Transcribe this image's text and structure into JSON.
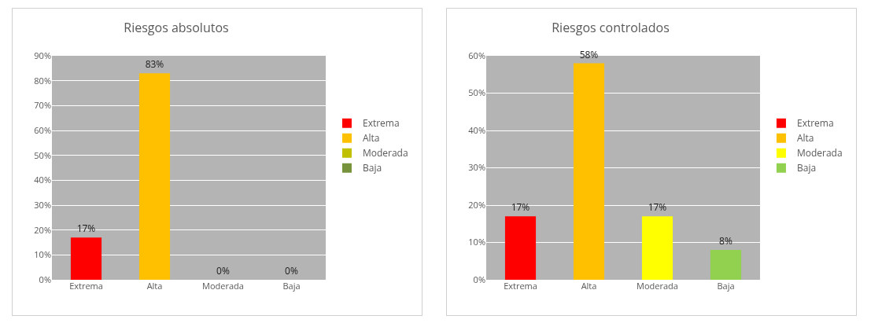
{
  "chart_data": [
    {
      "type": "bar",
      "title": "Riesgos absolutos",
      "categories": [
        "Extrema",
        "Alta",
        "Moderada",
        "Baja"
      ],
      "series": [
        {
          "name": "Extrema",
          "color": "#ff0000",
          "values": [
            17,
            null,
            null,
            null
          ],
          "value_labels": [
            "17%",
            null,
            null,
            null
          ]
        },
        {
          "name": "Alta",
          "color": "#ffc000",
          "values": [
            null,
            83,
            null,
            null
          ],
          "value_labels": [
            null,
            "83%",
            null,
            null
          ]
        },
        {
          "name": "Moderada",
          "color": "#c0c000",
          "values": [
            null,
            null,
            0,
            null
          ],
          "value_labels": [
            null,
            null,
            "0%",
            null
          ]
        },
        {
          "name": "Baja",
          "color": "#76933c",
          "values": [
            null,
            null,
            null,
            0
          ],
          "value_labels": [
            null,
            null,
            null,
            "0%"
          ]
        }
      ],
      "ylim": [
        0,
        90
      ],
      "yticks": [
        {
          "value": 0,
          "label": "0%"
        },
        {
          "value": 10,
          "label": "10%"
        },
        {
          "value": 20,
          "label": "20%"
        },
        {
          "value": 30,
          "label": "30%"
        },
        {
          "value": 40,
          "label": "40%"
        },
        {
          "value": 50,
          "label": "50%"
        },
        {
          "value": 60,
          "label": "60%"
        },
        {
          "value": 70,
          "label": "70%"
        },
        {
          "value": 80,
          "label": "80%"
        },
        {
          "value": 90,
          "label": "90%"
        }
      ],
      "grid": "y",
      "legend": "right"
    },
    {
      "type": "bar",
      "title": "Riesgos controlados",
      "categories": [
        "Extrema",
        "Alta",
        "Moderada",
        "Baja"
      ],
      "series": [
        {
          "name": "Extrema",
          "color": "#ff0000",
          "values": [
            17,
            null,
            null,
            null
          ],
          "value_labels": [
            "17%",
            null,
            null,
            null
          ]
        },
        {
          "name": "Alta",
          "color": "#ffc000",
          "values": [
            null,
            58,
            null,
            null
          ],
          "value_labels": [
            null,
            "58%",
            null,
            null
          ]
        },
        {
          "name": "Moderada",
          "color": "#ffff00",
          "values": [
            null,
            null,
            17,
            null
          ],
          "value_labels": [
            null,
            null,
            "17%",
            null
          ]
        },
        {
          "name": "Baja",
          "color": "#92d050",
          "values": [
            null,
            null,
            null,
            8
          ],
          "value_labels": [
            null,
            null,
            null,
            "8%"
          ]
        }
      ],
      "ylim": [
        0,
        60
      ],
      "yticks": [
        {
          "value": 0,
          "label": "0%"
        },
        {
          "value": 10,
          "label": "10%"
        },
        {
          "value": 20,
          "label": "20%"
        },
        {
          "value": 30,
          "label": "30%"
        },
        {
          "value": 40,
          "label": "40%"
        },
        {
          "value": 50,
          "label": "50%"
        },
        {
          "value": 60,
          "label": "60%"
        }
      ],
      "grid": "y",
      "legend": "right"
    }
  ]
}
